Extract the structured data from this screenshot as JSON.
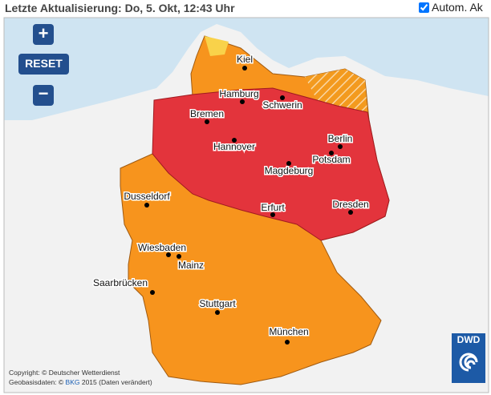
{
  "header": {
    "title": "Letzte Aktualisierung: Do, 5. Okt, 12:43 Uhr",
    "auto_label": "Autom. Ak"
  },
  "controls": {
    "zoom_in": "+",
    "reset": "RESET",
    "zoom_out": "−"
  },
  "cities": [
    "Kiel",
    "Hamburg",
    "Schwerin",
    "Bremen",
    "Berlin",
    "Hannover",
    "Potsdam",
    "Magdeburg",
    "Dusseldorf",
    "Erfurt",
    "Dresden",
    "Wiesbaden",
    "Mainz",
    "Saarbrücken",
    "Stuttgart",
    "München"
  ],
  "copyright": {
    "line1": "Copyright: © Deutscher Wetterdienst",
    "line2_prefix": "Geobasisdaten: © ",
    "line2_link": "BKG",
    "line2_suffix": " 2015 (Daten verändert)"
  },
  "logo": "DWD"
}
